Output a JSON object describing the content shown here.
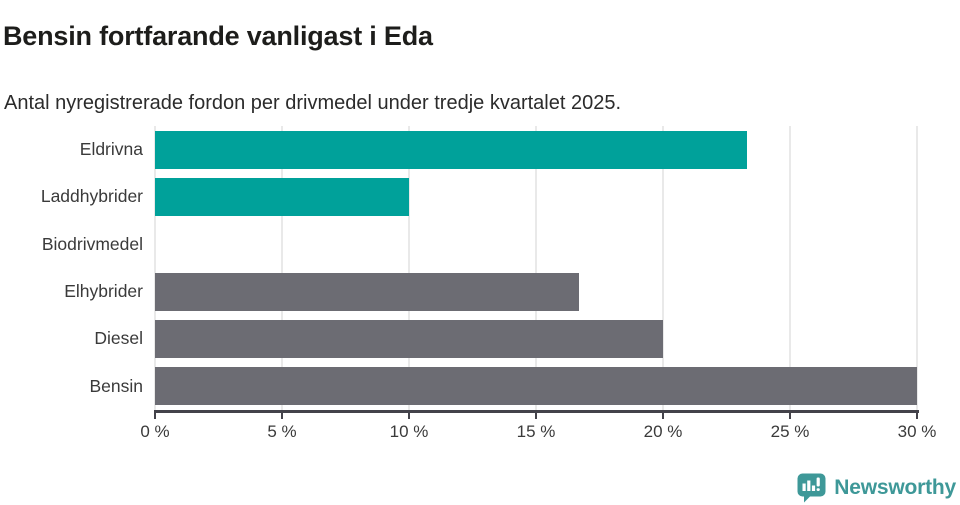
{
  "header": {
    "title": "Bensin fortfarande vanligast i Eda",
    "subtitle": "Antal nyregistrerade fordon per drivmedel under tredje kvartalet 2025."
  },
  "chart_data": {
    "type": "bar",
    "orientation": "horizontal",
    "title": "Bensin fortfarande vanligast i Eda",
    "subtitle": "Antal nyregistrerade fordon per drivmedel under tredje kvartalet 2025.",
    "categories": [
      "Eldrivna",
      "Laddhybrider",
      "Biodrivmedel",
      "Elhybrider",
      "Diesel",
      "Bensin"
    ],
    "values": [
      23.3,
      10,
      0,
      16.7,
      20,
      30
    ],
    "unit": "%",
    "bar_colors": [
      "#00a19a",
      "#00a19a",
      "#00a19a",
      "#6c6c73",
      "#6c6c73",
      "#6c6c73"
    ],
    "xlabel": "",
    "ylabel": "",
    "xlim": [
      0,
      30
    ],
    "x_ticks": [
      0,
      5,
      10,
      15,
      20,
      25,
      30
    ],
    "x_tick_labels": [
      "0 %",
      "5 %",
      "10 %",
      "15 %",
      "20 %",
      "25 %",
      "30 %"
    ],
    "grid": "vertical",
    "legend": "none"
  },
  "colors": {
    "teal": "#00a19a",
    "gray": "#6c6c73",
    "logo_teal": "#3e9898",
    "axis": "#43424a",
    "grid": "#e9e9e9",
    "title_text": "#1d1d1b",
    "label_text": "#3a3a3a"
  },
  "footer": {
    "brand": "Newsworthy",
    "logo_icon": "speech-bubble-bar-chart-exclamation-icon"
  }
}
